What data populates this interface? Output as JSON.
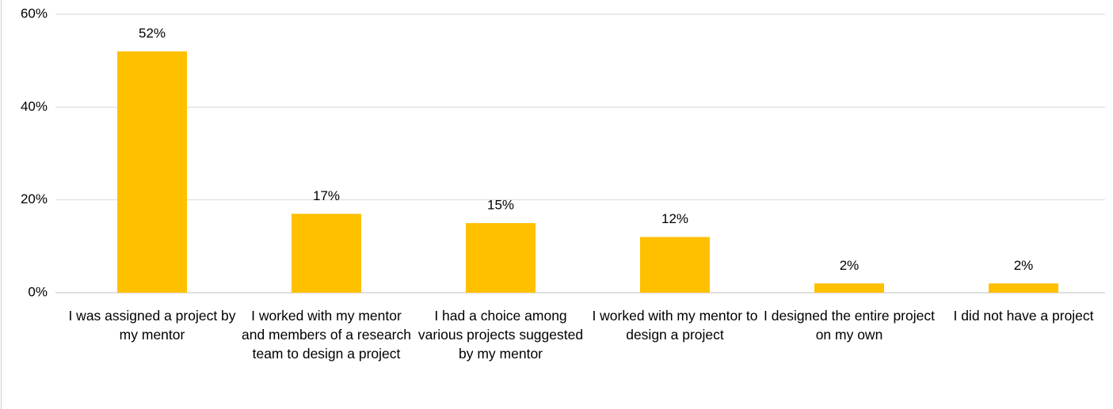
{
  "chart_data": {
    "type": "bar",
    "categories": [
      "I was assigned a project by my mentor",
      "I worked with my mentor and members of a research team to design a project",
      "I had a choice among various projects suggested by my mentor",
      "I worked with my mentor to design a project",
      "I designed the entire project on my own",
      "I did not have a project"
    ],
    "values": [
      52,
      17,
      15,
      12,
      2,
      2
    ],
    "value_labels": [
      "52%",
      "17%",
      "15%",
      "12%",
      "2%",
      "2%"
    ],
    "color": "#ffc000",
    "ylim": [
      0,
      60
    ],
    "yticks": [
      {
        "value": 0,
        "label": "0%"
      },
      {
        "value": 20,
        "label": "20%"
      },
      {
        "value": 40,
        "label": "40%"
      },
      {
        "value": 60,
        "label": "60%"
      }
    ],
    "grid": true
  }
}
